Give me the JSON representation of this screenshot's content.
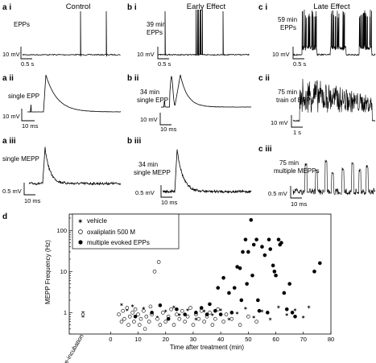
{
  "columns": {
    "a": "Control",
    "b": "Early Effect",
    "c": "Late Effect"
  },
  "panels": {
    "a_i": {
      "tag": "a i",
      "label": "EPPs",
      "scale_v": "10 mV",
      "scale_t": "0.5 s"
    },
    "a_ii": {
      "tag": "a ii",
      "label": "single EPP",
      "scale_v": "10 mV",
      "scale_t": "10 ms"
    },
    "a_iii": {
      "tag": "a iii",
      "label": "single MEPP",
      "scale_v": "0.5 mV",
      "scale_t": "10 ms"
    },
    "b_i": {
      "tag": "b i",
      "label1": "39 min",
      "label2": "EPPs",
      "scale_v": "10 mV",
      "scale_t": "0.5 s"
    },
    "b_ii": {
      "tag": "b ii",
      "label1": "34 min",
      "label2": "single EPP",
      "scale_v": "10 mV",
      "scale_t": "10 ms"
    },
    "b_iii": {
      "tag": "b iii",
      "label1": "34 min",
      "label2": "single MEPP",
      "scale_v": "0.5 mV",
      "scale_t": "10 ms"
    },
    "c_i": {
      "tag": "c i",
      "label1": "59 min",
      "label2": "EPPs",
      "scale_v": "10 mV",
      "scale_t": "0.5 s"
    },
    "c_ii": {
      "tag": "c ii",
      "label1": "75 min",
      "label2": "train of EPPs",
      "scale_v": "10 mV",
      "scale_t": "1 s"
    },
    "c_iii": {
      "tag": "c iii",
      "label1": "75 min",
      "label2": "multiple MEPPs",
      "scale_v": "0.5 mV",
      "scale_t": "10 ms"
    }
  },
  "chart_data": {
    "tag": "d",
    "type": "scatter",
    "xlabel": "Time after treatment (min)",
    "ylabel": "MEPP Frequency (Hz)",
    "xlim": [
      -15,
      80
    ],
    "ylim": [
      0.3,
      250
    ],
    "yscale": "log",
    "x_ticks": [
      0,
      10,
      20,
      30,
      40,
      50,
      60,
      70,
      80
    ],
    "y_ticks": [
      1,
      10,
      100
    ],
    "pre_incubation_label": "pre-incubation",
    "pre_incubation": {
      "x": -10,
      "y": 0.9,
      "low": 0.78,
      "high": 1.05
    },
    "legend_position": "top-left",
    "series": [
      {
        "name": "vehicle",
        "marker": "star",
        "points": [
          [
            4,
            1.6
          ],
          [
            6,
            1.2
          ],
          [
            8,
            1.5
          ],
          [
            12,
            1.3
          ],
          [
            17,
            0.8
          ],
          [
            20,
            1.1
          ],
          [
            23,
            1.4
          ],
          [
            25,
            0.9
          ],
          [
            28,
            1.2
          ],
          [
            31,
            0.7
          ],
          [
            34,
            1.1
          ],
          [
            37,
            0.9
          ],
          [
            40,
            1.2
          ],
          [
            43,
            0.7
          ],
          [
            46,
            1.0
          ],
          [
            49,
            1.3
          ],
          [
            52,
            0.8
          ],
          [
            55,
            1.1
          ],
          [
            58,
            0.7
          ],
          [
            61,
            1.4
          ],
          [
            64,
            0.9
          ],
          [
            67,
            1.2
          ],
          [
            70,
            0.8
          ],
          [
            72,
            1.4
          ]
        ]
      },
      {
        "name": "oxaliplatin 500 M",
        "marker": "open-circle",
        "points": [
          [
            3,
            0.9
          ],
          [
            4,
            0.6
          ],
          [
            4.5,
            1.1
          ],
          [
            5,
            0.7
          ],
          [
            6,
            1.3
          ],
          [
            6.5,
            0.5
          ],
          [
            7,
            0.8
          ],
          [
            8,
            1.0
          ],
          [
            8.5,
            0.6
          ],
          [
            9,
            1.2
          ],
          [
            10,
            0.9
          ],
          [
            10.5,
            0.5
          ],
          [
            11,
            0.7
          ],
          [
            12,
            1.1
          ],
          [
            12.5,
            0.4
          ],
          [
            13,
            0.8
          ],
          [
            14,
            0.6
          ],
          [
            14.5,
            1.4
          ],
          [
            15,
            0.9
          ],
          [
            16,
            10
          ],
          [
            17,
            0.7
          ],
          [
            17.5,
            17
          ],
          [
            18,
            0.5
          ],
          [
            19,
            1.0
          ],
          [
            20,
            0.6
          ],
          [
            21,
            0.8
          ],
          [
            22,
            1.2
          ],
          [
            23,
            0.5
          ],
          [
            24,
            0.9
          ],
          [
            25,
            0.7
          ],
          [
            26,
            1.1
          ],
          [
            27,
            0.6
          ],
          [
            28,
            0.8
          ],
          [
            29,
            1.3
          ],
          [
            30,
            0.5
          ],
          [
            31,
            0.9
          ],
          [
            32,
            0.7
          ],
          [
            33,
            1.1
          ],
          [
            34,
            0.6
          ],
          [
            35,
            0.8
          ],
          [
            36,
            1.0
          ],
          [
            37,
            0.5
          ],
          [
            38,
            0.7
          ],
          [
            39,
            1.2
          ],
          [
            41,
            0.6
          ],
          [
            42,
            0.9
          ],
          [
            44,
            0.7
          ],
          [
            47,
            0.5
          ],
          [
            50,
            0.8
          ],
          [
            53,
            0.6
          ]
        ]
      },
      {
        "name": "multiple evoked EPPs",
        "marker": "filled-circle",
        "points": [
          [
            9,
            0.8
          ],
          [
            15,
            1.0
          ],
          [
            18,
            1.5
          ],
          [
            21,
            0.7
          ],
          [
            24,
            1.2
          ],
          [
            27,
            0.9
          ],
          [
            31,
            1.0
          ],
          [
            33,
            1.3
          ],
          [
            35,
            0.9
          ],
          [
            36,
            1.6
          ],
          [
            38,
            1.1
          ],
          [
            39,
            4
          ],
          [
            40,
            0.9
          ],
          [
            41,
            7
          ],
          [
            43,
            3
          ],
          [
            44,
            1.0
          ],
          [
            45,
            4
          ],
          [
            46,
            13
          ],
          [
            47,
            12
          ],
          [
            47.5,
            2
          ],
          [
            48,
            30
          ],
          [
            49,
            60
          ],
          [
            49.5,
            5
          ],
          [
            50,
            30
          ],
          [
            51,
            180
          ],
          [
            51.5,
            8
          ],
          [
            52,
            45
          ],
          [
            53,
            60
          ],
          [
            53.5,
            2
          ],
          [
            54,
            1.1
          ],
          [
            55,
            40
          ],
          [
            56,
            25
          ],
          [
            57,
            1.0
          ],
          [
            57.5,
            60
          ],
          [
            58,
            35
          ],
          [
            59,
            14
          ],
          [
            59.5,
            10
          ],
          [
            60,
            8
          ],
          [
            61,
            60
          ],
          [
            61.5,
            45
          ],
          [
            62,
            50
          ],
          [
            63,
            3
          ],
          [
            64,
            1.2
          ],
          [
            65,
            5
          ],
          [
            66,
            1.0
          ],
          [
            67,
            0.8
          ],
          [
            74,
            10
          ],
          [
            76,
            16
          ]
        ]
      }
    ]
  }
}
